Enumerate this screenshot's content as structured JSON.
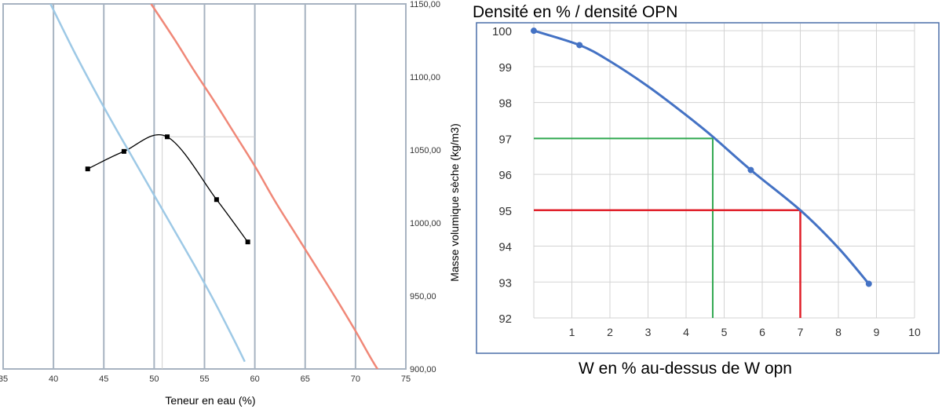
{
  "chart_data": [
    {
      "type": "line",
      "title": "",
      "xlabel": "Teneur en eau (%)",
      "ylabel": "Masse volumique sèche (kg/m3)",
      "xlim": [
        35,
        75
      ],
      "ylim": [
        900,
        1150
      ],
      "x_ticks": [
        "35",
        "40",
        "45",
        "50",
        "55",
        "60",
        "65",
        "70",
        "75"
      ],
      "y_ticks": [
        "900,00",
        "950,00",
        "1000,00",
        "1050,00",
        "1100,00",
        "1150,00"
      ],
      "y_axis_side": "right",
      "grid": "vertical",
      "colors": {
        "proctor": "#000000",
        "curve_blue": "#9ec9e6",
        "curve_red": "#f08878",
        "grid": "#a7b3c1"
      },
      "series": [
        {
          "role": "proctor",
          "x": [
            43.4,
            47.0,
            51.3,
            56.2,
            59.3
          ],
          "y": [
            1037,
            1049,
            1059,
            1016,
            987
          ]
        },
        {
          "role": "curve_blue",
          "x": [
            39.7,
            42,
            44,
            46,
            48,
            50,
            52,
            54,
            56,
            58,
            59.0
          ],
          "y": [
            1150,
            1118,
            1092,
            1067,
            1043,
            1019,
            995,
            971,
            946,
            919,
            905
          ]
        },
        {
          "role": "curve_red",
          "x": [
            49.7,
            52,
            54,
            56,
            58,
            60,
            62,
            64,
            66,
            68,
            70,
            72,
            74.2
          ],
          "y": [
            1150,
            1126,
            1104,
            1083,
            1061,
            1039,
            1015,
            993,
            971,
            949,
            926,
            902,
            880
          ]
        }
      ],
      "reference_lines": [
        {
          "from_x": 50.8,
          "to_x": 60,
          "y": 1059
        },
        {
          "x": 50.8,
          "from_y": 900,
          "to_y": 1059
        }
      ]
    },
    {
      "type": "line",
      "title": "Densité en % / densité OPN",
      "xlabel": "W en % au-dessus de W opn",
      "ylabel": "",
      "xlim": [
        -0.2,
        10
      ],
      "ylim": [
        92,
        100.2
      ],
      "x_ticks": [
        "1",
        "2",
        "3",
        "4",
        "5",
        "6",
        "7",
        "8",
        "9",
        "10"
      ],
      "y_ticks": [
        "92",
        "93",
        "94",
        "95",
        "96",
        "97",
        "98",
        "99",
        "100"
      ],
      "grid": "both",
      "colors": {
        "curve": "#4472c4",
        "green": "#2fa84f",
        "red": "#e0202a",
        "grid": "#d3d3d3",
        "frame": "#4a6ea8"
      },
      "series": [
        {
          "role": "curve",
          "x": [
            0,
            1.2,
            2,
            3,
            4,
            4.7,
            5.7,
            7,
            8,
            8.8
          ],
          "y": [
            100,
            99.6,
            99.15,
            98.45,
            97.65,
            97.05,
            96.12,
            95.0,
            93.95,
            92.95
          ],
          "markers_at": [
            0,
            1,
            6,
            9
          ]
        }
      ],
      "annotations": [
        {
          "color": "green",
          "x": 4.7,
          "y": 97
        },
        {
          "color": "red",
          "x": 7,
          "y": 95
        }
      ]
    }
  ]
}
